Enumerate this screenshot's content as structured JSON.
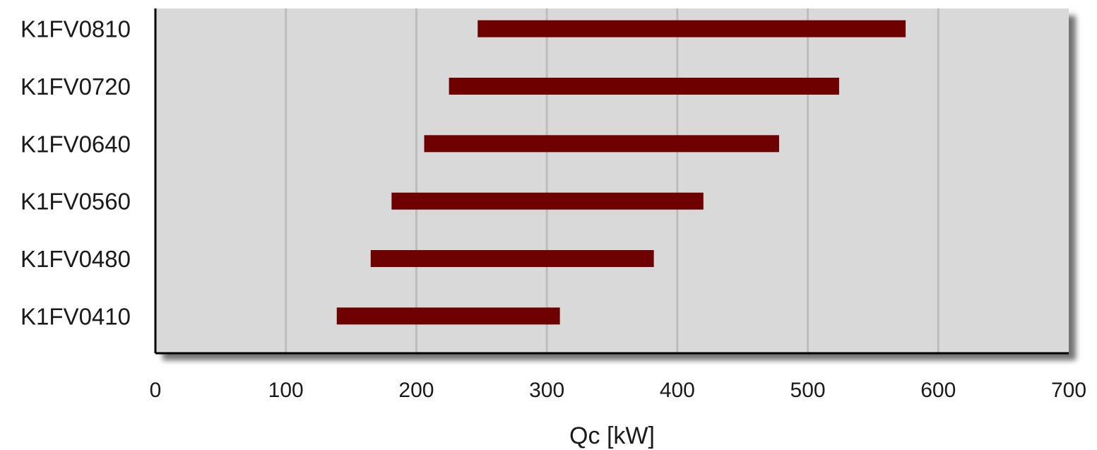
{
  "chart_data": {
    "type": "bar",
    "orientation": "horizontal",
    "style": "floating-range",
    "title": "",
    "xlabel": "Qc [kW]",
    "ylabel": "",
    "xlim": [
      0,
      700
    ],
    "xticks": [
      0,
      100,
      200,
      300,
      400,
      500,
      600,
      700
    ],
    "grid": "vertical",
    "legend": "none",
    "categories": [
      "K1FV0810",
      "K1FV0720",
      "K1FV0640",
      "K1FV0560",
      "K1FV0480",
      "K1FV0410"
    ],
    "ranges": [
      [
        247,
        575
      ],
      [
        225,
        524
      ],
      [
        206,
        478
      ],
      [
        181,
        420
      ],
      [
        165,
        382
      ],
      [
        139,
        310
      ]
    ],
    "colors": {
      "bar": "#6e0000",
      "plot_background": "#d9d9d9",
      "gridline": "#bdbdbd",
      "axis": "#000000"
    }
  }
}
